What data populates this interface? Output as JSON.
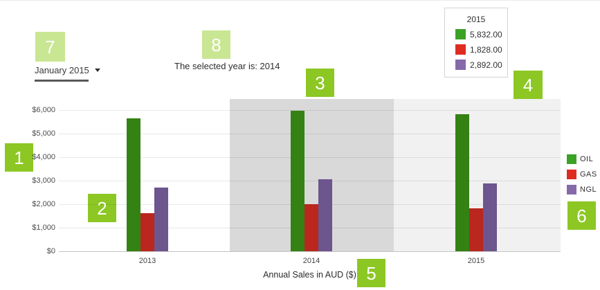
{
  "controls": {
    "period_dropdown": {
      "value": "January 2015"
    },
    "selected_year_text": "The selected year is: 2014"
  },
  "tooltip": {
    "title": "2015",
    "rows": [
      {
        "series": "OIL",
        "value": "5,832.00",
        "color": "#3ba226"
      },
      {
        "series": "GAS",
        "value": "1,828.00",
        "color": "#df2c21"
      },
      {
        "series": "NGL",
        "value": "2,892.00",
        "color": "#8569a9"
      }
    ]
  },
  "legend": {
    "items": [
      {
        "label": "OIL",
        "color": "#3ba226"
      },
      {
        "label": "GAS",
        "color": "#df2c21"
      },
      {
        "label": "NGL",
        "color": "#8569a9"
      }
    ]
  },
  "annotations": {
    "badges": [
      {
        "label": "1",
        "variant": "bright"
      },
      {
        "label": "2",
        "variant": "bright"
      },
      {
        "label": "3",
        "variant": "bright"
      },
      {
        "label": "4",
        "variant": "bright"
      },
      {
        "label": "5",
        "variant": "bright"
      },
      {
        "label": "6",
        "variant": "bright"
      },
      {
        "label": "7",
        "variant": "pale"
      },
      {
        "label": "8",
        "variant": "pale"
      }
    ],
    "badge_colors": {
      "bright": "#8cc724",
      "pale": "#c9e693"
    }
  },
  "chart_data": {
    "type": "bar",
    "title": "Annual Sales in AUD ($)",
    "categories": [
      "2013",
      "2014",
      "2015"
    ],
    "series": [
      {
        "name": "OIL",
        "color": "#348114",
        "values": [
          5650,
          5970,
          5832
        ]
      },
      {
        "name": "GAS",
        "color": "#b9271e",
        "values": [
          1630,
          2000,
          1828
        ]
      },
      {
        "name": "NGL",
        "color": "#6d558e",
        "values": [
          2720,
          3060,
          2892
        ]
      }
    ],
    "y_ticks": [
      "$0",
      "$1,000",
      "$2,000",
      "$3,000",
      "$4,000",
      "$5,000",
      "$6,000"
    ],
    "y_tick_values": [
      0,
      1000,
      2000,
      3000,
      4000,
      5000,
      6000
    ],
    "ylim": [
      0,
      6500
    ],
    "grid": true,
    "legend_position": "right",
    "selected_category": "2014",
    "hovered_category": "2015",
    "band_colors": {
      "selected": "#d9d9d9",
      "hovered": "#f1f1f1"
    }
  }
}
